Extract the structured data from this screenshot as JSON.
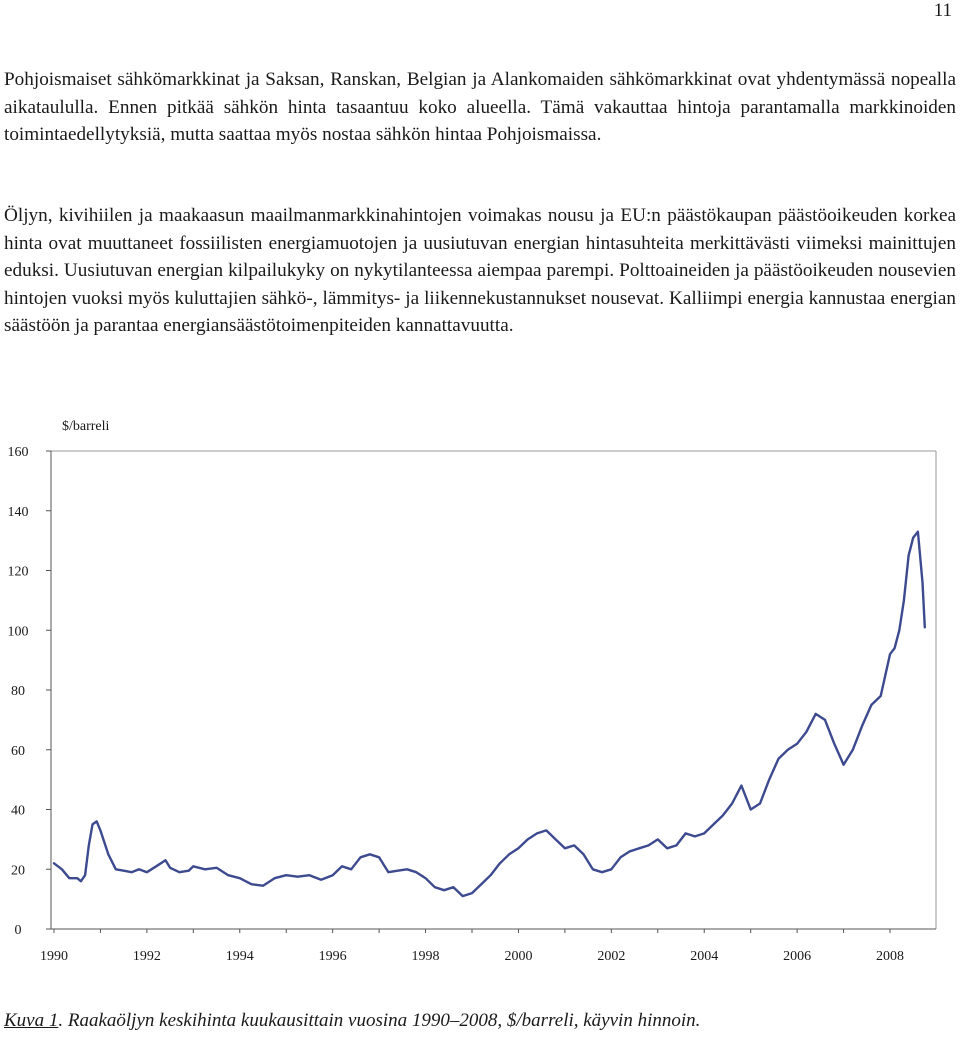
{
  "page": {
    "number": "11"
  },
  "paragraphs": [
    "Pohjoismaiset sähkömarkkinat ja Saksan, Ranskan, Belgian ja Alankomaiden sähkömarkkinat ovat yhdentymässä nopealla aikataululla. Ennen pitkää sähkön hinta tasaantuu koko alueella. Tämä vakauttaa hintoja parantamalla markkinoiden toimintaedellytyksiä, mutta saattaa myös nostaa sähkön hintaa Pohjoismaissa.",
    "Öljyn, kivihiilen ja maakaasun maailmanmarkkinahintojen voimakas nousu ja EU:n päästökaupan päästöoikeuden korkea hinta ovat muuttaneet fossiilisten energiamuotojen ja uusiutuvan energian hintasuhteita merkittävästi viimeksi mainittujen eduksi. Uusiutuvan energian kilpailukyky on nykytilanteessa aiempaa parempi. Polttoaineiden ja päästöoikeuden nousevien hintojen vuoksi myös kuluttajien sähkö-, lämmitys- ja liikennekustannukset nousevat. Kalliimpi energia kannustaa energian säästöön ja parantaa energiansäästötoimenpiteiden kannattavuutta."
  ],
  "chart_data": {
    "type": "line",
    "ylabel": "$/barreli",
    "ylim": [
      0,
      160
    ],
    "y_ticks": [
      "0",
      "20",
      "40",
      "60",
      "80",
      "100",
      "120",
      "140",
      "160"
    ],
    "x_ticks": [
      "1990",
      "1992",
      "1994",
      "1996",
      "1998",
      "2000",
      "2002",
      "2004",
      "2006",
      "2008"
    ],
    "grid": false,
    "line_color": "#3d4a8f",
    "series": [
      {
        "x": [
          1990.0,
          1990.17,
          1990.33,
          1990.5,
          1990.58,
          1990.67,
          1990.75,
          1990.83,
          1990.92,
          1991.0,
          1991.17,
          1991.33,
          1991.5,
          1991.67,
          1991.83,
          1992.0,
          1992.2,
          1992.4,
          1992.5,
          1992.7,
          1992.9,
          1993.0,
          1993.25,
          1993.5,
          1993.75,
          1994.0,
          1994.25,
          1994.5,
          1994.75,
          1995.0,
          1995.25,
          1995.5,
          1995.75,
          1996.0,
          1996.2,
          1996.4,
          1996.6,
          1996.8,
          1997.0,
          1997.2,
          1997.4,
          1997.6,
          1997.8,
          1998.0,
          1998.2,
          1998.4,
          1998.6,
          1998.8,
          1999.0,
          1999.2,
          1999.4,
          1999.6,
          1999.8,
          2000.0,
          2000.2,
          2000.4,
          2000.6,
          2000.8,
          2001.0,
          2001.2,
          2001.4,
          2001.6,
          2001.8,
          2002.0,
          2002.2,
          2002.4,
          2002.6,
          2002.8,
          2003.0,
          2003.2,
          2003.4,
          2003.6,
          2003.8,
          2004.0,
          2004.2,
          2004.4,
          2004.6,
          2004.8,
          2005.0,
          2005.2,
          2005.4,
          2005.6,
          2005.8,
          2006.0,
          2006.2,
          2006.4,
          2006.6,
          2006.8,
          2007.0,
          2007.2,
          2007.4,
          2007.6,
          2007.8,
          2008.0,
          2008.1,
          2008.2,
          2008.3,
          2008.4,
          2008.5,
          2008.6,
          2008.7,
          2008.75
        ],
        "y": [
          22,
          20,
          17,
          17,
          16,
          18,
          28,
          35,
          36,
          33,
          25,
          20,
          19.5,
          19,
          20,
          19,
          21,
          23,
          20.5,
          19,
          19.5,
          21,
          20,
          20.5,
          18,
          17,
          15,
          14.5,
          17,
          18,
          17.5,
          18,
          16.5,
          18,
          21,
          20,
          24,
          25,
          24,
          19,
          19.5,
          20,
          19,
          17,
          14,
          13,
          14,
          11,
          12,
          15,
          18,
          22,
          25,
          27,
          30,
          32,
          33,
          30,
          27,
          28,
          25,
          20,
          19,
          20,
          24,
          26,
          27,
          28,
          30,
          27,
          28,
          32,
          31,
          32,
          35,
          38,
          42,
          48,
          40,
          42,
          50,
          57,
          60,
          62,
          66,
          72,
          70,
          62,
          55,
          60,
          68,
          75,
          78,
          92,
          94,
          100,
          110,
          125,
          131,
          133,
          116,
          101
        ]
      }
    ]
  },
  "caption": {
    "label": "Kuva 1",
    "text": ". Raakaöljyn keskihinta kuukausittain vuosina 1990–2008, $/barreli, käyvin hinnoin."
  }
}
